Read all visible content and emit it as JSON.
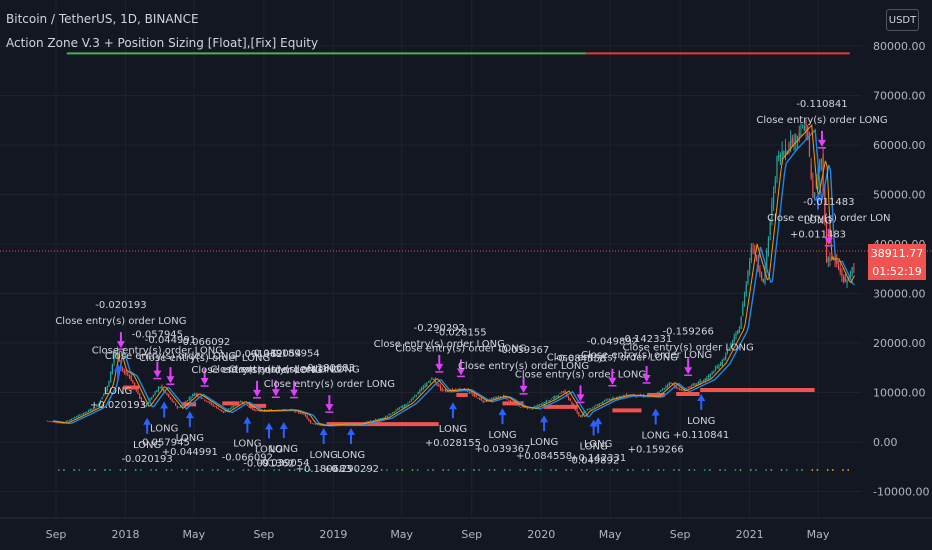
{
  "header": {
    "symbol_line": "Bitcoin / TetherUS, 1D, BINANCE",
    "strategy_line": "Action Zone V.3 + Position Sizing [Float],[Fix] Equity",
    "currency_button": "USDT"
  },
  "price_label": {
    "price": "38911.77",
    "countdown": "01:52:19"
  },
  "colors": {
    "background": "#131722",
    "grid": "#1e222d",
    "up": "#26a69a",
    "down": "#ef5350",
    "long_arrow": "#2962ff",
    "close_arrow": "#e040fb",
    "equity": "#f05350",
    "text": "#d1d4dc"
  },
  "chart_data": {
    "type": "candlestick",
    "symbol": "Bitcoin / TetherUS",
    "timeframe": "1D",
    "exchange": "BINANCE",
    "x_ticks": [
      "Sep",
      "2018",
      "May",
      "Sep",
      "2019",
      "May",
      "Sep",
      "2020",
      "May",
      "Sep",
      "2021",
      "May"
    ],
    "x_tick_dates": [
      "2017-09-01",
      "2018-01-01",
      "2018-05-01",
      "2018-09-01",
      "2019-01-01",
      "2019-05-01",
      "2019-09-01",
      "2020-01-01",
      "2020-05-01",
      "2020-09-01",
      "2021-01-01",
      "2021-05-01"
    ],
    "y_axis_ticks": [
      -10000,
      0,
      10000,
      20000,
      30000,
      40000,
      50000,
      60000,
      70000,
      80000
    ],
    "y_axis_labels": [
      "-10000.00",
      "0.00",
      "10000.00",
      "20000.00",
      "30000.00",
      "40000.00",
      "50000.00",
      "60000.00",
      "70000.00",
      "80000.00"
    ],
    "ylim": [
      -15000,
      90000
    ],
    "last_price": 38911.77,
    "price_series": {
      "dates": [
        "2017-08-17",
        "2017-09-15",
        "2017-10-20",
        "2017-11-15",
        "2017-12-05",
        "2017-12-17",
        "2017-12-28",
        "2018-01-10",
        "2018-02-06",
        "2018-03-05",
        "2018-04-06",
        "2018-05-05",
        "2018-06-25",
        "2018-07-25",
        "2018-08-20",
        "2018-09-20",
        "2018-10-20",
        "2018-11-15",
        "2018-11-25",
        "2018-12-15",
        "2019-01-15",
        "2019-02-15",
        "2019-04-02",
        "2019-05-15",
        "2019-06-26",
        "2019-07-15",
        "2019-08-20",
        "2019-09-24",
        "2019-10-26",
        "2019-11-25",
        "2019-12-18",
        "2020-01-20",
        "2020-02-13",
        "2020-03-12",
        "2020-03-20",
        "2020-04-30",
        "2020-06-01",
        "2020-07-20",
        "2020-08-17",
        "2020-09-05",
        "2020-10-20",
        "2020-11-15",
        "2020-12-17",
        "2021-01-08",
        "2021-01-28",
        "2021-02-21",
        "2021-03-13",
        "2021-04-14",
        "2021-04-25",
        "2021-05-10",
        "2021-05-19",
        "2021-06-01",
        "2021-06-21",
        "2021-07-04"
      ],
      "values": [
        4300,
        3800,
        5700,
        7200,
        11600,
        19000,
        14500,
        13500,
        7000,
        11300,
        6800,
        9800,
        6000,
        8200,
        6300,
        6400,
        6500,
        5500,
        3800,
        3300,
        3600,
        3600,
        4900,
        7900,
        12900,
        10300,
        10700,
        8200,
        9300,
        7200,
        6800,
        8600,
        10300,
        5000,
        6200,
        8600,
        9500,
        9200,
        12000,
        10300,
        12800,
        16000,
        23000,
        40000,
        32000,
        57000,
        60000,
        64000,
        49000,
        58000,
        37000,
        37000,
        32000,
        35000
      ]
    },
    "trades": {
      "long_entries": [
        {
          "date": "2017-12-19",
          "value": 0.020193
        },
        {
          "date": "2018-02-08",
          "value": -0.020193
        },
        {
          "date": "2018-03-10",
          "value": -0.057945
        },
        {
          "date": "2018-04-24",
          "value": 0.044991
        },
        {
          "date": "2018-08-03",
          "value": -0.066092
        },
        {
          "date": "2018-09-10",
          "value": -0.091362
        },
        {
          "date": "2018-10-06",
          "value": -0.039054
        },
        {
          "date": "2018-12-15",
          "value": 0.180683
        },
        {
          "date": "2019-02-01",
          "value": 0.290292
        },
        {
          "date": "2019-07-30",
          "value": 0.028155
        },
        {
          "date": "2019-10-25",
          "value": 0.039367
        },
        {
          "date": "2020-01-06",
          "value": 0.084558
        },
        {
          "date": "2020-04-02",
          "value": -0.049892
        },
        {
          "date": "2020-04-10",
          "value": 0.142331
        },
        {
          "date": "2020-07-20",
          "value": 0.159266
        },
        {
          "date": "2020-10-08",
          "value": 0.110841
        },
        {
          "date": "2021-05-01",
          "value": 0.011483
        }
      ],
      "long_labels": [
        [
          "LONG",
          "+0.020193"
        ],
        [
          "LONG",
          "-0.020193"
        ],
        [
          "LONG",
          "-0.057945"
        ],
        [
          "LONG",
          "+0.044991"
        ],
        [
          "LONG",
          "-0.066092"
        ],
        [
          "LONG",
          "-0.091362"
        ],
        [
          "LONG",
          "-0.039054"
        ],
        [
          "LONG",
          "+0.180683"
        ],
        [
          "LONG",
          "+0.290292"
        ],
        [
          "LONG",
          "+0.028155"
        ],
        [
          "LONG",
          "+0.039367"
        ],
        [
          "LONG",
          "+0.084558"
        ],
        [
          "LONG",
          "-0.049892"
        ],
        [
          "LONG",
          "+0.142331"
        ],
        [
          "LONG",
          "+0.159266"
        ],
        [
          "LONG",
          "+0.110841"
        ],
        [
          "LONG",
          "+0.011483"
        ]
      ],
      "close_exits": [
        {
          "date": "2017-12-24",
          "value": -0.020193
        },
        {
          "date": "2018-02-26",
          "value": -0.057945
        },
        {
          "date": "2018-03-21",
          "value": -0.044991
        },
        {
          "date": "2018-05-20",
          "value": -0.066092
        },
        {
          "date": "2018-08-20",
          "value": -0.091362
        },
        {
          "date": "2018-09-22",
          "value": -0.039054
        },
        {
          "date": "2018-10-24",
          "value": -0.189954
        },
        {
          "date": "2018-12-25",
          "value": -0.180683
        },
        {
          "date": "2019-07-06",
          "value": -0.290292
        },
        {
          "date": "2019-08-13",
          "value": -0.028155
        },
        {
          "date": "2019-12-01",
          "value": -0.039367
        },
        {
          "date": "2020-03-10",
          "value": -0.084558
        },
        {
          "date": "2020-05-05",
          "value": -0.049892
        },
        {
          "date": "2020-07-04",
          "value": -0.142331
        },
        {
          "date": "2020-09-15",
          "value": -0.159266
        },
        {
          "date": "2021-05-08",
          "value": -0.110841
        },
        {
          "date": "2021-05-20",
          "value": -0.011483
        }
      ],
      "close_labels": [
        [
          "-0.020193",
          "Close entry(s) order LONG"
        ],
        [
          "-0.057945",
          "Close entry(s) order LONG"
        ],
        [
          "-0.044991",
          "Close entry(s) order LONG"
        ],
        [
          "-0.066092",
          "Close entry(s) order LONG"
        ],
        [
          "-0.091362",
          "Close entry(s) order LONG"
        ],
        [
          "-0.039054",
          "Close entry(s) order LONG"
        ],
        [
          "-0.189954",
          "Close entry(s) order LONG"
        ],
        [
          "-0.180683",
          "Close entry(s) order LONG"
        ],
        [
          "-0.290292",
          "Close entry(s) order LONG"
        ],
        [
          "-0.028155",
          "Close entry(s) order LONG"
        ],
        [
          "-0.039367",
          "Close entry(s) order LONG"
        ],
        [
          "-0.084558",
          "Close entry(s) order LONG"
        ],
        [
          "-0.049892",
          "Close entry(s) order LONG"
        ],
        [
          "-0.142331",
          "Close entry(s) order LONG"
        ],
        [
          "-0.159266",
          "Close entry(s) order LONG"
        ],
        [
          "-0.110841",
          "Close entry(s) order LONG"
        ],
        [
          "-0.011483",
          "Close entry(s) order LON"
        ]
      ]
    },
    "equity_segments": [
      {
        "start": "2017-12-28",
        "end": "2018-01-25",
        "value": 11000
      },
      {
        "start": "2018-04-10",
        "end": "2018-05-05",
        "value": 7600
      },
      {
        "start": "2018-06-20",
        "end": "2018-07-20",
        "value": 7800
      },
      {
        "start": "2018-08-05",
        "end": "2018-09-05",
        "value": 7300
      },
      {
        "start": "2018-12-20",
        "end": "2019-07-05",
        "value": 3600
      },
      {
        "start": "2019-08-05",
        "end": "2019-08-25",
        "value": 9500
      },
      {
        "start": "2019-10-25",
        "end": "2019-12-01",
        "value": 7800
      },
      {
        "start": "2020-01-05",
        "end": "2020-03-05",
        "value": 7100
      },
      {
        "start": "2020-05-05",
        "end": "2020-06-25",
        "value": 6400
      },
      {
        "start": "2020-07-05",
        "end": "2020-08-05",
        "value": 9500
      },
      {
        "start": "2020-08-25",
        "end": "2020-10-05",
        "value": 9700
      },
      {
        "start": "2020-10-06",
        "end": "2021-04-25",
        "value": 10500
      }
    ],
    "indicator_top_bar": {
      "start": "2017-09-20",
      "end": "2021-06-26",
      "value": 78500
    }
  }
}
